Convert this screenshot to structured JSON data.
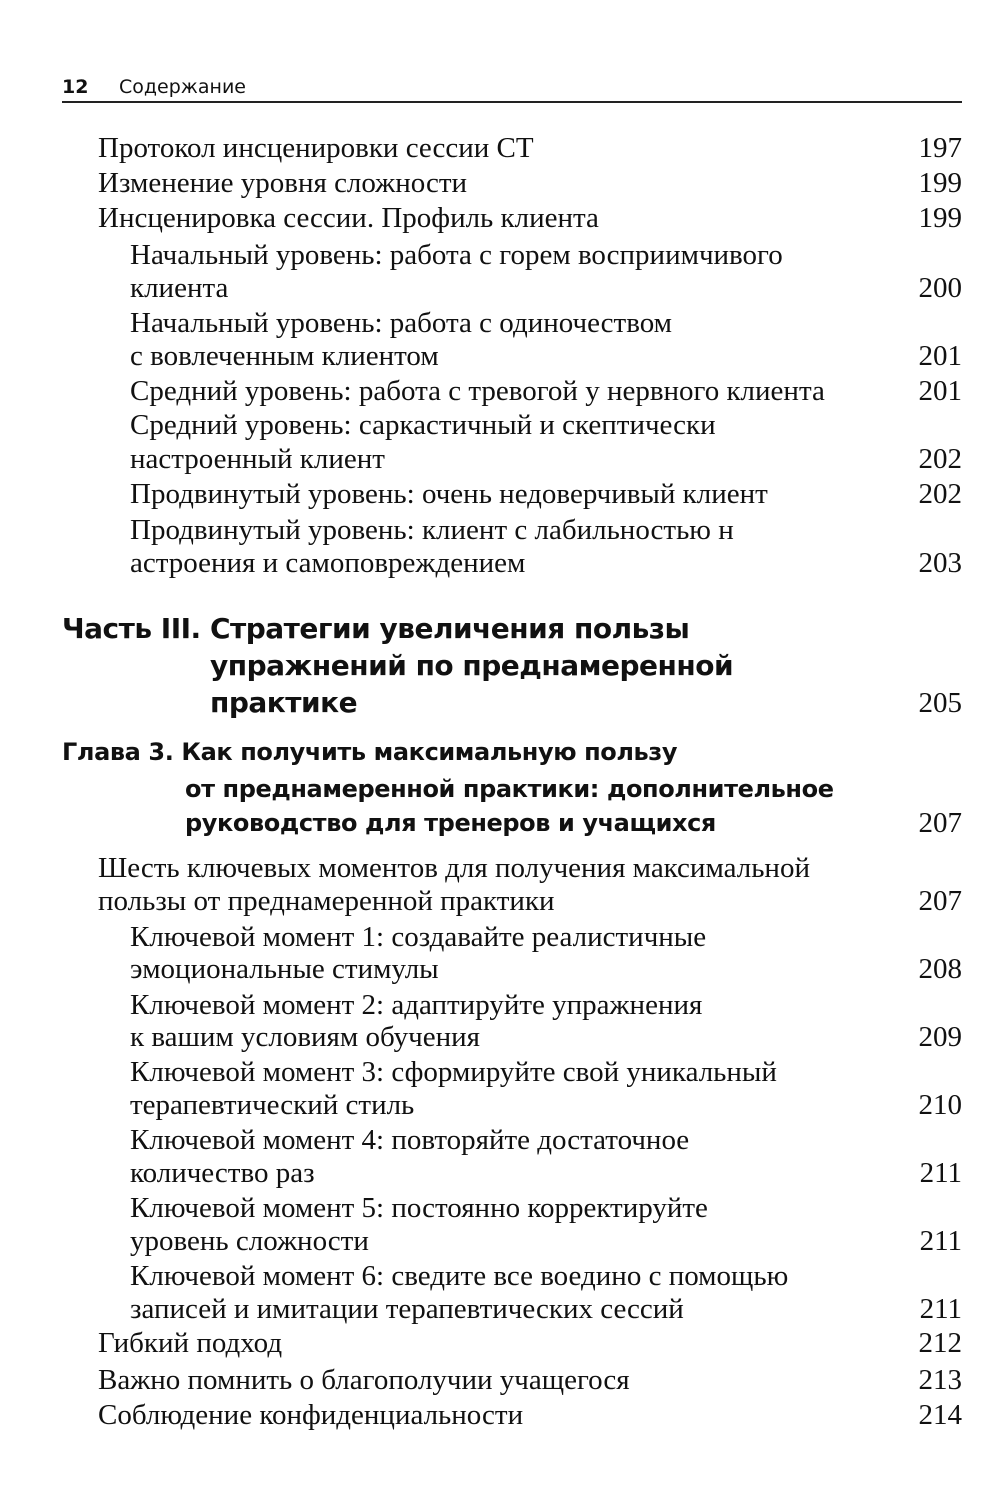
{
  "header": {
    "page_number": "12",
    "title": "Содержание"
  },
  "entries": [
    {
      "type": "section",
      "lines": [
        "Протокол инсценировки сессии СТ"
      ],
      "page": "197"
    },
    {
      "type": "section",
      "lines": [
        "Изменение уровня сложности"
      ],
      "page": "199"
    },
    {
      "type": "section",
      "lines": [
        "Инсценировка сессии. Профиль клиента"
      ],
      "page": "199"
    },
    {
      "type": "subsection",
      "lines": [
        "Начальный уровень: работа с горем восприимчивого",
        "клиента"
      ],
      "page": "200"
    },
    {
      "type": "subsection",
      "lines": [
        "Начальный уровень: работа с одиночеством",
        "с вовлеченным клиентом"
      ],
      "page": "201"
    },
    {
      "type": "subsection",
      "lines": [
        "Средний уровень: работа с тревогой у нервного клиента"
      ],
      "page": "201"
    },
    {
      "type": "subsection",
      "lines": [
        "Средний уровень: саркастичный и скептически",
        "настроенный клиент"
      ],
      "page": "202"
    },
    {
      "type": "subsection",
      "lines": [
        "Продвинутый уровень: очень недоверчивый клиент"
      ],
      "page": "202"
    },
    {
      "type": "subsection",
      "lines": [
        "Продвинутый уровень: клиент с лабильностью н",
        "астроения и самоповреждением"
      ],
      "page": "203"
    },
    {
      "type": "part",
      "lines": [
        "Часть III. Стратегии увеличения пользы",
        "упражнений по преднамеренной",
        "практике"
      ],
      "page": "205"
    },
    {
      "type": "chapter",
      "lines": [
        "Глава 3. Как получить максимальную пользу",
        "от преднамеренной практики: дополнительное",
        "руководство для тренеров и учащихся"
      ],
      "page": "207"
    },
    {
      "type": "section",
      "lines": [
        "Шесть ключевых моментов для получения максимальной",
        "пользы от преднамеренной практики"
      ],
      "page": "207"
    },
    {
      "type": "subsection",
      "lines": [
        "Ключевой момент 1: создавайте реалистичные",
        "эмоциональные стимулы"
      ],
      "page": "208"
    },
    {
      "type": "subsection",
      "lines": [
        "Ключевой момент 2: адаптируйте упражнения",
        "к вашим условиям обучения"
      ],
      "page": "209"
    },
    {
      "type": "subsection",
      "lines": [
        "Ключевой момент 3: сформируйте свой уникальный",
        "терапевтический стиль"
      ],
      "page": "210"
    },
    {
      "type": "subsection",
      "lines": [
        "Ключевой момент 4: повторяйте достаточное",
        "количество раз"
      ],
      "page": "211"
    },
    {
      "type": "subsection",
      "lines": [
        "Ключевой момент 5: постоянно корректируйте",
        "уровень сложности"
      ],
      "page": "211"
    },
    {
      "type": "subsection",
      "lines": [
        "Ключевой момент 6: сведите все воедино с помощью",
        "записей и имитации терапевтических сессий"
      ],
      "page": "211"
    },
    {
      "type": "section",
      "lines": [
        "Гибкий подход"
      ],
      "page": "212"
    },
    {
      "type": "section",
      "lines": [
        "Важно помнить о благополучии учащегося"
      ],
      "page": "213"
    },
    {
      "type": "section",
      "lines": [
        "Соблюдение конфиденциальности"
      ],
      "page": "214"
    }
  ]
}
